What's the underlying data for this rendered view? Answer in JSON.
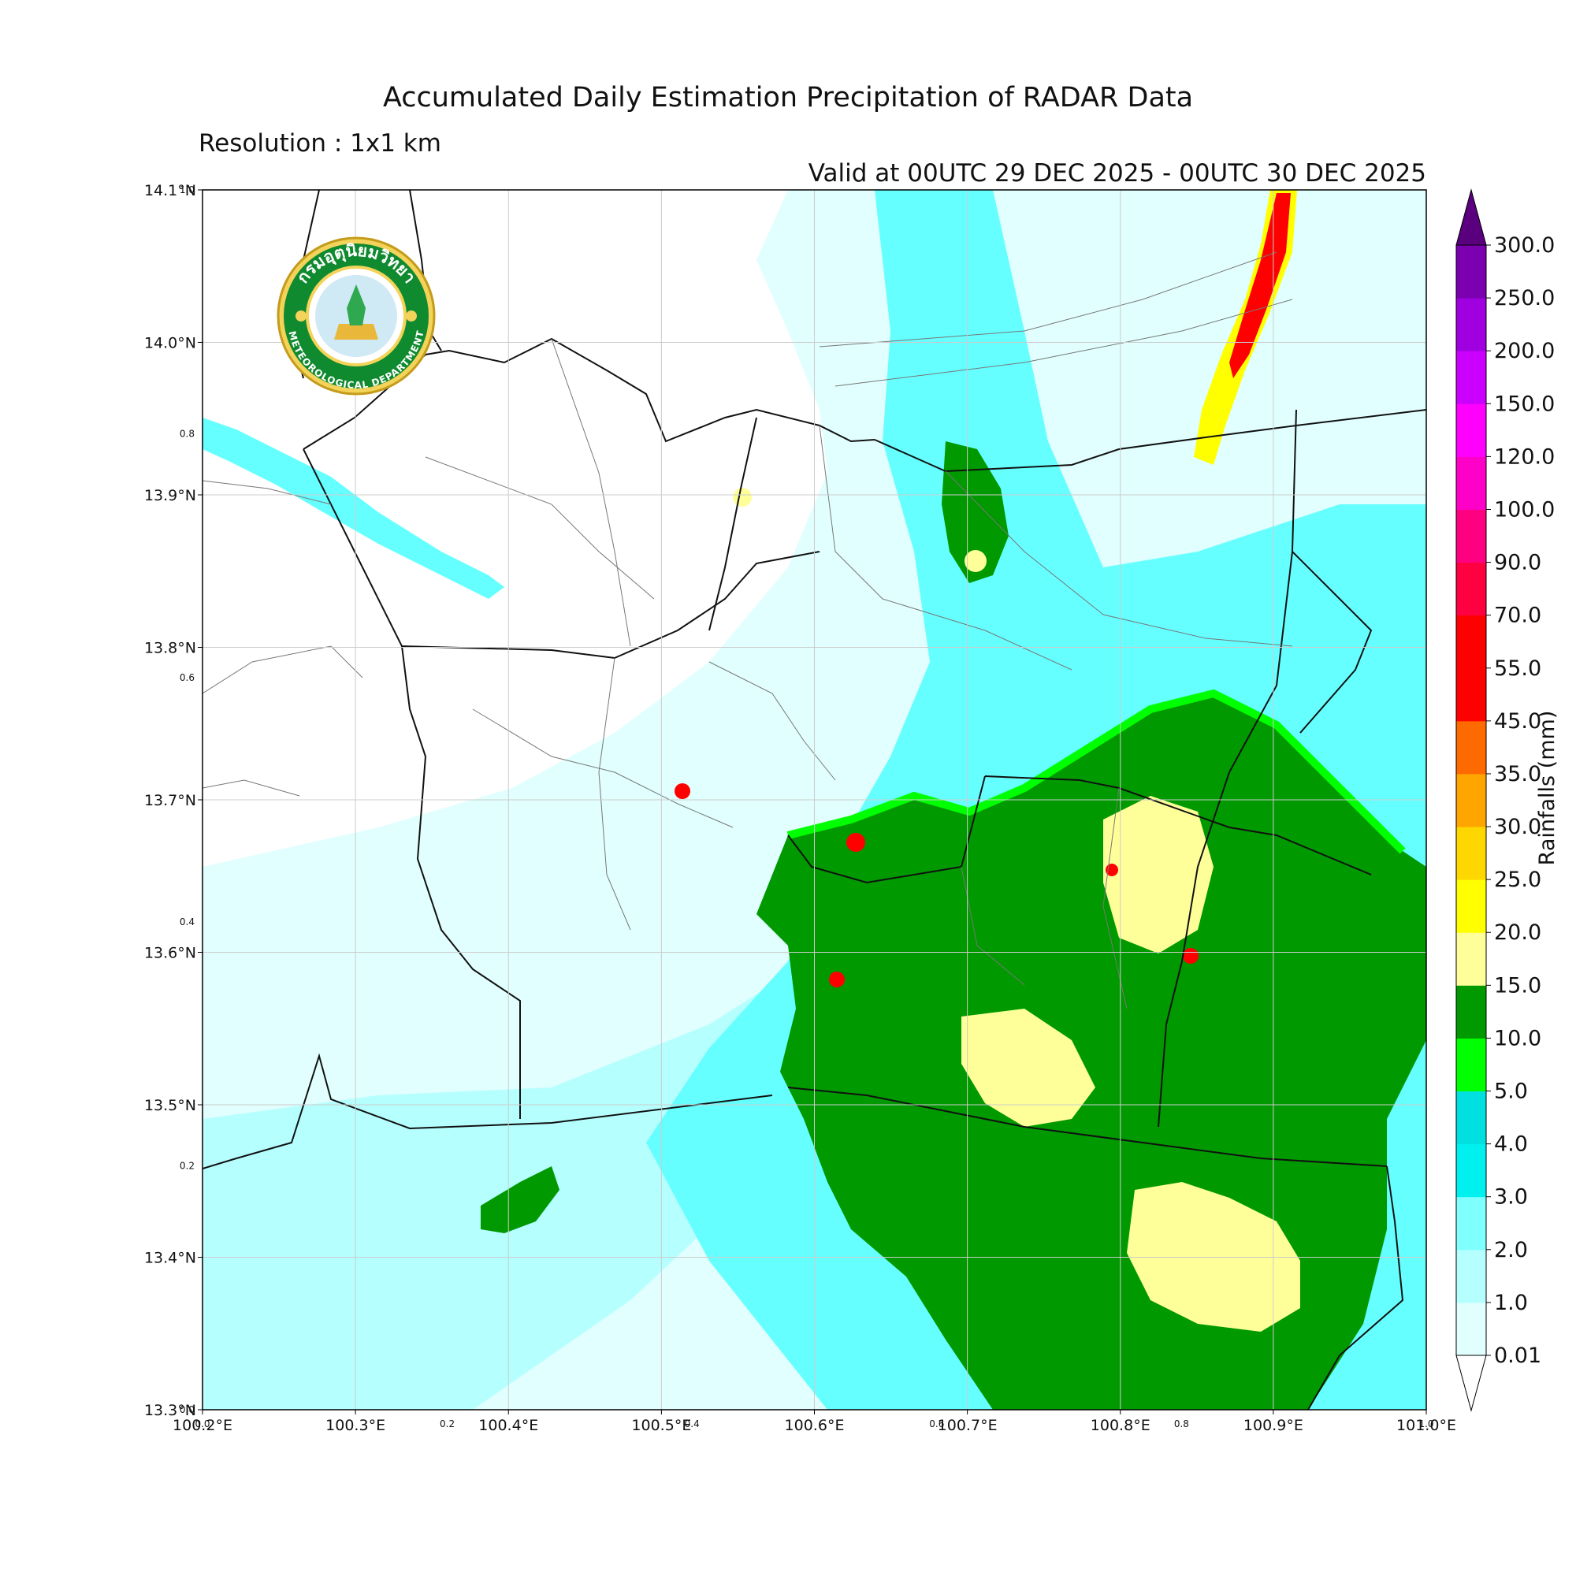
{
  "header": {
    "title": "Accumulated Daily Estimation Precipitation of RADAR Data",
    "resolution": "Resolution : 1x1 km",
    "valid": "Valid at 00UTC 29 DEC 2025 - 00UTC 30 DEC 2025"
  },
  "logo": {
    "top_text": "กรมอุตุนิยมวิทยา",
    "bottom_text": "METEOROLOGICAL DEPARTMENT"
  },
  "map": {
    "lon_range": [
      100.2,
      101.0
    ],
    "lat_range": [
      13.3,
      14.1
    ],
    "lon_ticks": [
      "100.2°E",
      "100.3°E",
      "100.4°E",
      "100.5°E",
      "100.6°E",
      "100.7°E",
      "100.8°E",
      "100.9°E",
      "101.0°E"
    ],
    "lat_ticks": [
      "13.3°N",
      "13.4°N",
      "13.5°N",
      "13.6°N",
      "13.7°N",
      "13.8°N",
      "13.9°N",
      "14.0°N",
      "14.1°N"
    ],
    "secondary_bottom_ticks": [
      "0.0",
      "0.2",
      "0.4",
      "0.6",
      "0.8",
      "1.0"
    ],
    "secondary_left_ticks": [
      "0.0",
      "0.2",
      "0.4",
      "0.6",
      "0.8",
      "1.0"
    ],
    "grid": true
  },
  "colorbar": {
    "label": "Rainfalls (mm)",
    "levels": [
      "0.01",
      "1.0",
      "2.0",
      "3.0",
      "4.0",
      "5.0",
      "10.0",
      "15.0",
      "20.0",
      "25.0",
      "30.0",
      "35.0",
      "45.0",
      "55.0",
      "70.0",
      "90.0",
      "100.0",
      "120.0",
      "150.0",
      "200.0",
      "250.0",
      "300.0"
    ],
    "colors": [
      "#e0fffe",
      "#b6ffff",
      "#80ffff",
      "#00f0f0",
      "#00e0e0",
      "#00ff00",
      "#009900",
      "#ffff99",
      "#ffff00",
      "#ffd700",
      "#ffa500",
      "#ff6a00",
      "#ff0000",
      "#ff0000",
      "#ff0040",
      "#ff0080",
      "#ff00c8",
      "#ff00ff",
      "#cc00ff",
      "#a000e0",
      "#7a00b0"
    ],
    "extend_max_color": "#5a007e"
  },
  "colors": {
    "very_light": "#e0fffe",
    "light_cyan": "#b6ffff",
    "cyan": "#66ffff",
    "cyan_dark": "#00e6e6",
    "bright_green": "#00ff00",
    "dark_green": "#009900",
    "light_yellow": "#ffff99",
    "yellow": "#ffff00",
    "orange": "#ffa500",
    "red": "#ff0000",
    "magenta": "#ff00c8"
  }
}
